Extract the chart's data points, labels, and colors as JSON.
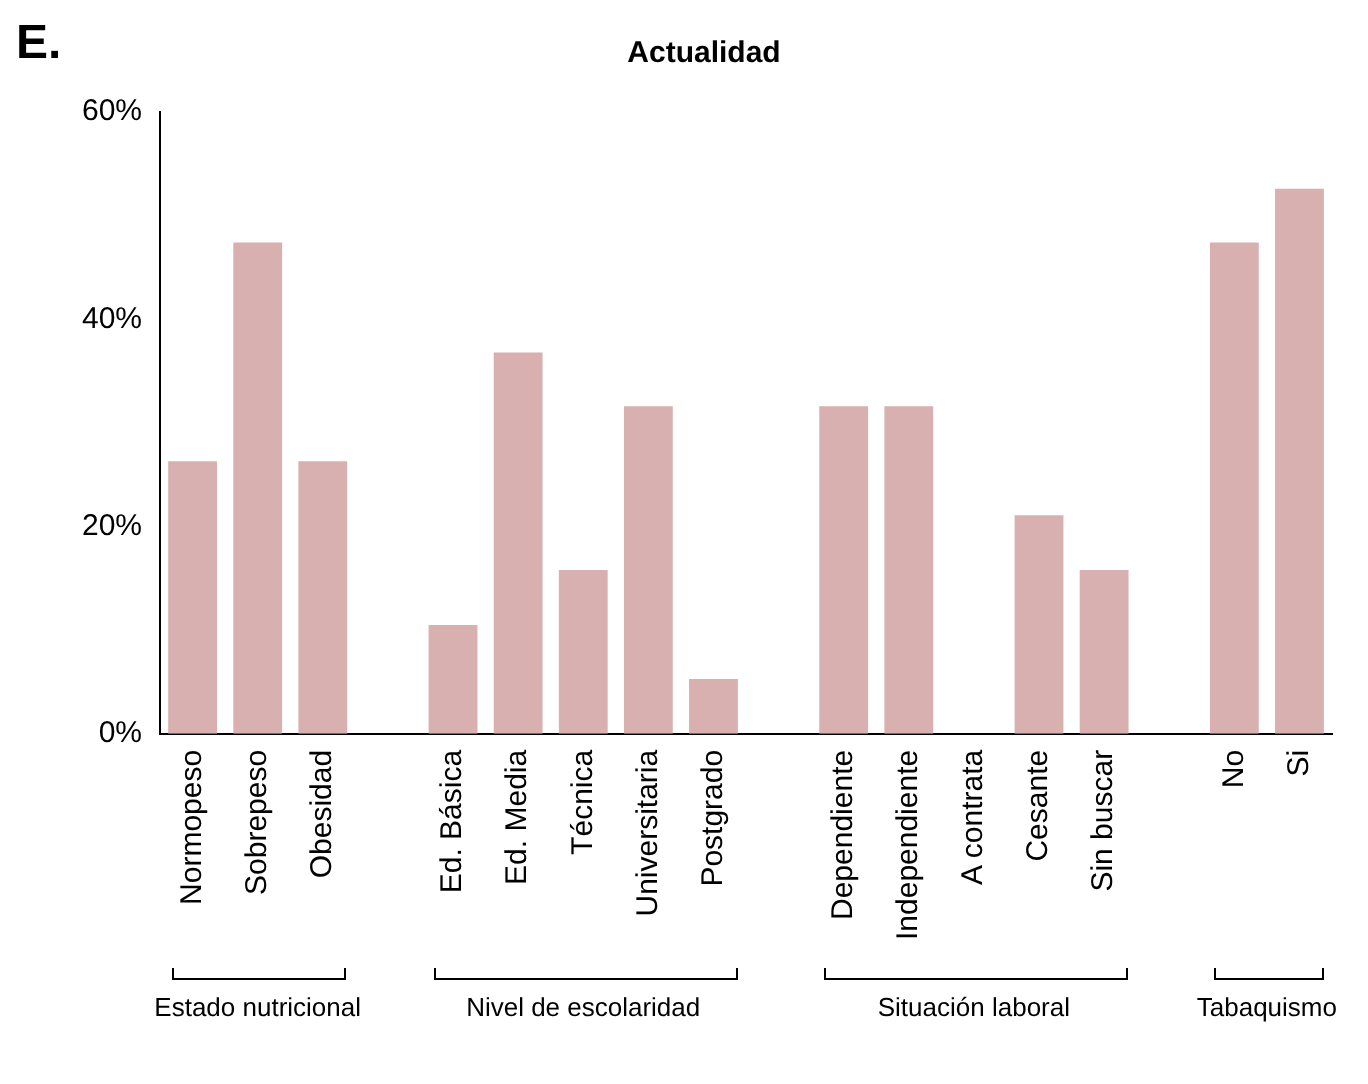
{
  "chart_data": {
    "type": "bar",
    "title": "Actualidad",
    "categories": [
      "Normopeso",
      "Sobrepeso",
      "Obesidad",
      null,
      "Ed. Básica",
      "Ed. Media",
      "Técnica",
      "Universitaria",
      "Postgrado",
      null,
      "Dependiente",
      "Independiente",
      "A contrata",
      "Cesante",
      "Sin buscar",
      null,
      "No",
      "Si"
    ],
    "values": [
      26.3,
      47.4,
      26.3,
      null,
      10.5,
      36.8,
      15.8,
      31.6,
      5.3,
      null,
      31.6,
      31.6,
      0,
      21.1,
      15.8,
      null,
      47.4,
      52.6
    ],
    "color": "#d8b0b0",
    "ylim": [
      0,
      60
    ],
    "yticks": [
      {
        "value": 0,
        "label": "0%"
      },
      {
        "value": 20,
        "label": "20%"
      },
      {
        "value": 40,
        "label": "40%"
      },
      {
        "value": 60,
        "label": "60%"
      }
    ],
    "grid": false,
    "legend": false,
    "annotations": [
      "E.",
      "Estado nutricional",
      "Nivel de escolaridad",
      "Situación laboral",
      "Tabaquismo"
    ]
  }
}
